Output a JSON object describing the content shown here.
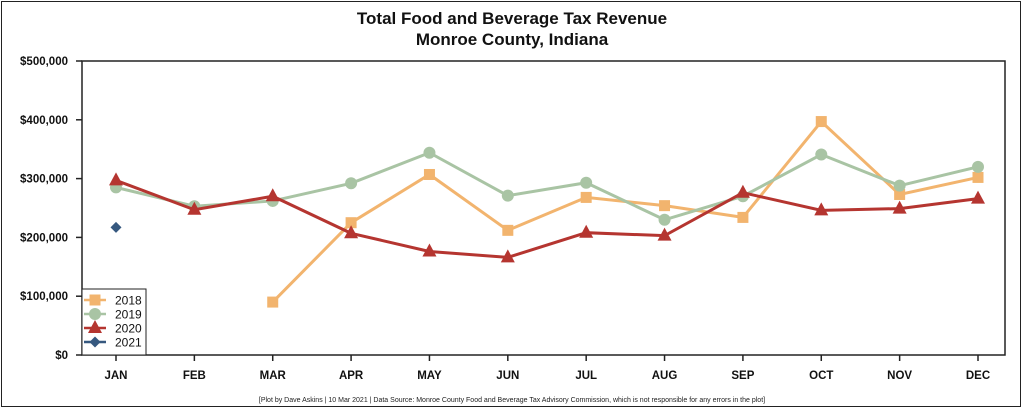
{
  "chart_data": {
    "type": "line",
    "title": "Total Food and Beverage Tax Revenue",
    "subtitle": "Monroe County, Indiana",
    "xlabel": "",
    "ylabel": "",
    "categories": [
      "JAN",
      "FEB",
      "MAR",
      "APR",
      "MAY",
      "JUN",
      "JUL",
      "AUG",
      "SEP",
      "OCT",
      "NOV",
      "DEC"
    ],
    "ylim": [
      0,
      500000
    ],
    "yticks": [
      0,
      100000,
      200000,
      300000,
      400000,
      500000
    ],
    "ytick_labels": [
      "$0",
      "$100,000",
      "$200,000",
      "$300,000",
      "$400,000",
      "$500,000"
    ],
    "grid": false,
    "legend_position": "bottom-left",
    "series": [
      {
        "name": "2018",
        "color": "#f2b46e",
        "marker": "square",
        "values": [
          null,
          null,
          90000,
          225000,
          307000,
          212000,
          268000,
          254000,
          234000,
          397000,
          273000,
          302000
        ]
      },
      {
        "name": "2019",
        "color": "#a9c4a4",
        "marker": "circle",
        "values": [
          285000,
          253000,
          262000,
          292000,
          344000,
          271000,
          293000,
          230000,
          270000,
          341000,
          288000,
          320000
        ]
      },
      {
        "name": "2020",
        "color": "#b53530",
        "marker": "triangle",
        "values": [
          297000,
          247000,
          270000,
          207000,
          176000,
          166000,
          208000,
          203000,
          276000,
          246000,
          249000,
          266000
        ]
      },
      {
        "name": "2021",
        "color": "#36587f",
        "marker": "diamond",
        "values": [
          217000,
          null,
          null,
          null,
          null,
          null,
          null,
          null,
          null,
          null,
          null,
          null
        ]
      }
    ],
    "footnote": "[Plot by Dave Askins | 10 Mar 2021 | Data Source: Monroe County Food and Beverage Tax Advisory Commission, which is not responsible for any errors in the plot]"
  }
}
